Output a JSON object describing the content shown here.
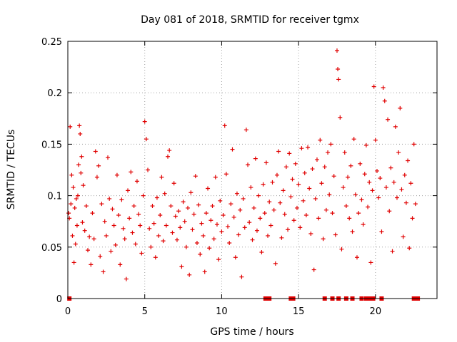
{
  "chart_data": {
    "type": "scatter",
    "title": "Day 081 of 2018, SRMTID for receiver tgmx",
    "xlabel": "GPS time / hours",
    "ylabel": "SRMTID / TECUs",
    "xlim": [
      0,
      24
    ],
    "ylim": [
      0,
      0.25
    ],
    "xticks": [
      0,
      5,
      10,
      15,
      20
    ],
    "xtick_labels": [
      "0",
      "5",
      "10",
      "15",
      "20"
    ],
    "yticks": [
      0,
      0.05,
      0.1,
      0.15,
      0.2,
      0.25
    ],
    "ytick_labels": [
      "0",
      "0.05",
      "0.1",
      "0.15",
      "0.2",
      "0.25"
    ],
    "grid": true,
    "marker": "plus",
    "color": "#e00000",
    "zero_marker": "square",
    "series": [
      {
        "name": "SRMTID",
        "sample_interval_hours": 0.01,
        "note": "dense per-satellite samples; values listed as [hour, TECU]",
        "points": [
          [
            0.05,
            0.083
          ],
          [
            0.1,
            0.078
          ],
          [
            0.15,
            0.167
          ],
          [
            0.2,
            0.092
          ],
          [
            0.25,
            0.12
          ],
          [
            0.3,
            0.061
          ],
          [
            0.35,
            0.108
          ],
          [
            0.4,
            0.035
          ],
          [
            0.45,
            0.088
          ],
          [
            0.5,
            0.053
          ],
          [
            0.55,
            0.097
          ],
          [
            0.6,
            0.071
          ],
          [
            0.65,
            0.1
          ],
          [
            0.7,
            0.13
          ],
          [
            0.75,
            0.168
          ],
          [
            0.8,
            0.16
          ],
          [
            0.85,
            0.122
          ],
          [
            0.9,
            0.138
          ],
          [
            0.95,
            0.074
          ],
          [
            1.0,
            0.11
          ],
          [
            1.1,
            0.066
          ],
          [
            1.2,
            0.09
          ],
          [
            1.3,
            0.047
          ],
          [
            1.4,
            0.06
          ],
          [
            1.5,
            0.033
          ],
          [
            1.6,
            0.083
          ],
          [
            1.7,
            0.058
          ],
          [
            1.8,
            0.143
          ],
          [
            1.9,
            0.118
          ],
          [
            2.0,
            0.129
          ],
          [
            2.1,
            0.041
          ],
          [
            2.2,
            0.092
          ],
          [
            2.3,
            0.026
          ],
          [
            2.4,
            0.075
          ],
          [
            2.5,
            0.061
          ],
          [
            2.6,
            0.137
          ],
          [
            2.7,
            0.097
          ],
          [
            2.8,
            0.046
          ],
          [
            2.9,
            0.087
          ],
          [
            3.0,
            0.071
          ],
          [
            3.1,
            0.052
          ],
          [
            3.2,
            0.12
          ],
          [
            3.3,
            0.081
          ],
          [
            3.4,
            0.033
          ],
          [
            3.5,
            0.096
          ],
          [
            3.6,
            0.068
          ],
          [
            3.7,
            0.058
          ],
          [
            3.8,
            0.019
          ],
          [
            3.9,
            0.105
          ],
          [
            4.0,
            0.078
          ],
          [
            4.1,
            0.123
          ],
          [
            4.2,
            0.064
          ],
          [
            4.3,
            0.09
          ],
          [
            4.4,
            0.053
          ],
          [
            4.5,
            0.114
          ],
          [
            4.6,
            0.082
          ],
          [
            4.7,
            0.071
          ],
          [
            4.8,
            0.044
          ],
          [
            4.9,
            0.1
          ],
          [
            5.0,
            0.172
          ],
          [
            5.1,
            0.155
          ],
          [
            5.2,
            0.125
          ],
          [
            5.3,
            0.068
          ],
          [
            5.4,
            0.05
          ],
          [
            5.5,
            0.09
          ],
          [
            5.6,
            0.073
          ],
          [
            5.7,
            0.04
          ],
          [
            5.8,
            0.098
          ],
          [
            5.9,
            0.061
          ],
          [
            6.0,
            0.081
          ],
          [
            6.1,
            0.118
          ],
          [
            6.2,
            0.056
          ],
          [
            6.3,
            0.102
          ],
          [
            6.4,
            0.071
          ],
          [
            6.5,
            0.138
          ],
          [
            6.6,
            0.144
          ],
          [
            6.7,
            0.09
          ],
          [
            6.8,
            0.064
          ],
          [
            6.9,
            0.112
          ],
          [
            7.0,
            0.08
          ],
          [
            7.1,
            0.057
          ],
          [
            7.2,
            0.085
          ],
          [
            7.3,
            0.069
          ],
          [
            7.4,
            0.031
          ],
          [
            7.5,
            0.094
          ],
          [
            7.6,
            0.075
          ],
          [
            7.7,
            0.05
          ],
          [
            7.8,
            0.088
          ],
          [
            7.9,
            0.023
          ],
          [
            8.0,
            0.103
          ],
          [
            8.1,
            0.067
          ],
          [
            8.2,
            0.082
          ],
          [
            8.3,
            0.119
          ],
          [
            8.4,
            0.054
          ],
          [
            8.5,
            0.091
          ],
          [
            8.6,
            0.043
          ],
          [
            8.7,
            0.073
          ],
          [
            8.8,
            0.061
          ],
          [
            8.9,
            0.026
          ],
          [
            9.0,
            0.083
          ],
          [
            9.1,
            0.107
          ],
          [
            9.2,
            0.049
          ],
          [
            9.3,
            0.076
          ],
          [
            9.4,
            0.09
          ],
          [
            9.5,
            0.058
          ],
          [
            9.6,
            0.118
          ],
          [
            9.7,
            0.072
          ],
          [
            9.8,
            0.038
          ],
          [
            9.9,
            0.095
          ],
          [
            10.0,
            0.065
          ],
          [
            10.1,
            0.081
          ],
          [
            10.2,
            0.168
          ],
          [
            10.3,
            0.121
          ],
          [
            10.4,
            0.07
          ],
          [
            10.5,
            0.054
          ],
          [
            10.6,
            0.092
          ],
          [
            10.7,
            0.145
          ],
          [
            10.8,
            0.079
          ],
          [
            10.9,
            0.04
          ],
          [
            11.0,
            0.102
          ],
          [
            11.1,
            0.062
          ],
          [
            11.2,
            0.086
          ],
          [
            11.3,
            0.021
          ],
          [
            11.4,
            0.097
          ],
          [
            11.5,
            0.069
          ],
          [
            11.6,
            0.164
          ],
          [
            11.7,
            0.13
          ],
          [
            11.8,
            0.074
          ],
          [
            11.9,
            0.108
          ],
          [
            12.0,
            0.057
          ],
          [
            12.1,
            0.088
          ],
          [
            12.2,
            0.136
          ],
          [
            12.3,
            0.066
          ],
          [
            12.4,
            0.1
          ],
          [
            12.5,
            0.078
          ],
          [
            12.6,
            0.045
          ],
          [
            12.7,
            0.111
          ],
          [
            12.8,
            0.083
          ],
          [
            12.9,
            0.132
          ],
          [
            13.0,
            0.061
          ],
          [
            13.1,
            0.094
          ],
          [
            13.2,
            0.071
          ],
          [
            13.3,
            0.113
          ],
          [
            13.4,
            0.086
          ],
          [
            13.5,
            0.034
          ],
          [
            13.6,
            0.12
          ],
          [
            13.7,
            0.143
          ],
          [
            13.8,
            0.093
          ],
          [
            13.9,
            0.059
          ],
          [
            14.0,
            0.105
          ],
          [
            14.1,
            0.082
          ],
          [
            14.2,
            0.128
          ],
          [
            14.3,
            0.067
          ],
          [
            14.4,
            0.141
          ],
          [
            14.5,
            0.099
          ],
          [
            14.6,
            0.116
          ],
          [
            14.7,
            0.076
          ],
          [
            14.8,
            0.131
          ],
          [
            14.9,
            0.088
          ],
          [
            15.0,
            0.111
          ],
          [
            15.1,
            0.069
          ],
          [
            15.2,
            0.146
          ],
          [
            15.3,
            0.095
          ],
          [
            15.4,
            0.122
          ],
          [
            15.5,
            0.081
          ],
          [
            15.6,
            0.147
          ],
          [
            15.7,
            0.107
          ],
          [
            15.8,
            0.063
          ],
          [
            15.9,
            0.126
          ],
          [
            16.0,
            0.028
          ],
          [
            16.1,
            0.097
          ],
          [
            16.2,
            0.135
          ],
          [
            16.3,
            0.078
          ],
          [
            16.4,
            0.154
          ],
          [
            16.5,
            0.112
          ],
          [
            16.6,
            0.058
          ],
          [
            16.7,
            0.128
          ],
          [
            16.8,
            0.086
          ],
          [
            16.9,
            0.142
          ],
          [
            17.0,
            0.101
          ],
          [
            17.1,
            0.15
          ],
          [
            17.2,
            0.083
          ],
          [
            17.3,
            0.119
          ],
          [
            17.4,
            0.062
          ],
          [
            17.5,
            0.241
          ],
          [
            17.55,
            0.223
          ],
          [
            17.6,
            0.213
          ],
          [
            17.7,
            0.176
          ],
          [
            17.8,
            0.048
          ],
          [
            17.9,
            0.108
          ],
          [
            18.0,
            0.142
          ],
          [
            18.1,
            0.09
          ],
          [
            18.2,
            0.118
          ],
          [
            18.3,
            0.078
          ],
          [
            18.4,
            0.129
          ],
          [
            18.5,
            0.065
          ],
          [
            18.6,
            0.155
          ],
          [
            18.7,
            0.101
          ],
          [
            18.8,
            0.04
          ],
          [
            18.9,
            0.083
          ],
          [
            19.0,
            0.131
          ],
          [
            19.1,
            0.096
          ],
          [
            19.2,
            0.072
          ],
          [
            19.3,
            0.121
          ],
          [
            19.4,
            0.149
          ],
          [
            19.5,
            0.089
          ],
          [
            19.6,
            0.113
          ],
          [
            19.7,
            0.035
          ],
          [
            19.8,
            0.105
          ],
          [
            19.9,
            0.206
          ],
          [
            20.0,
            0.154
          ],
          [
            20.1,
            0.124
          ],
          [
            20.2,
            0.098
          ],
          [
            20.3,
            0.117
          ],
          [
            20.4,
            0.065
          ],
          [
            20.5,
            0.205
          ],
          [
            20.6,
            0.192
          ],
          [
            20.7,
            0.108
          ],
          [
            20.8,
            0.174
          ],
          [
            20.9,
            0.085
          ],
          [
            21.0,
            0.127
          ],
          [
            21.1,
            0.046
          ],
          [
            21.2,
            0.113
          ],
          [
            21.3,
            0.167
          ],
          [
            21.4,
            0.098
          ],
          [
            21.5,
            0.142
          ],
          [
            21.6,
            0.185
          ],
          [
            21.7,
            0.106
          ],
          [
            21.8,
            0.06
          ],
          [
            21.9,
            0.12
          ],
          [
            22.0,
            0.093
          ],
          [
            22.1,
            0.134
          ],
          [
            22.2,
            0.049
          ],
          [
            22.3,
            0.112
          ],
          [
            22.4,
            0.078
          ],
          [
            22.5,
            0.15
          ],
          [
            22.6,
            0.092
          ]
        ]
      }
    ]
  }
}
